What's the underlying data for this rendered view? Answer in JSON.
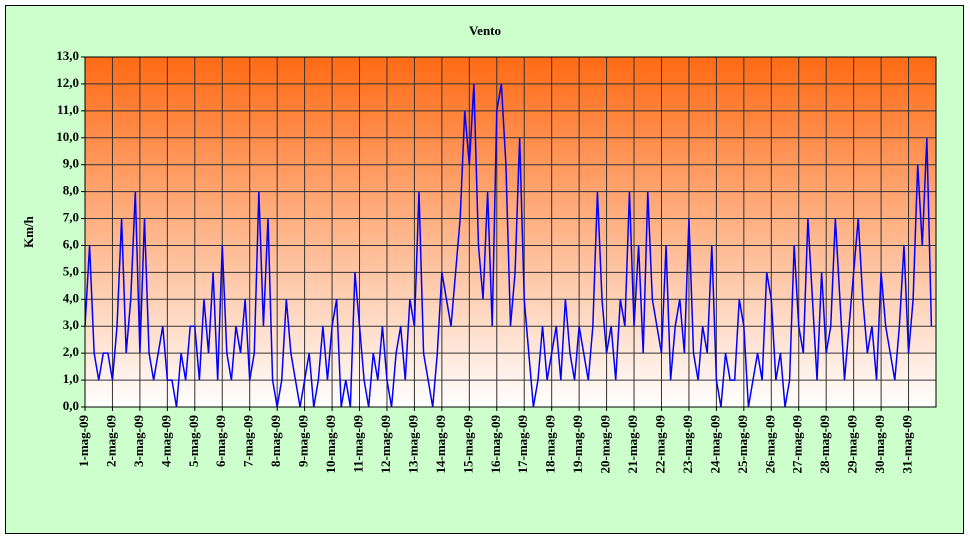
{
  "chart_data": {
    "type": "line",
    "title": "Vento",
    "ylabel": "Km/h",
    "x": [
      0,
      4,
      8,
      12,
      16,
      20,
      24,
      28,
      32,
      36,
      40,
      44,
      48,
      52,
      56,
      60,
      64,
      68,
      72,
      76,
      80,
      84,
      88,
      92,
      96,
      100,
      104,
      108,
      112,
      116,
      120,
      124,
      128,
      132,
      136,
      140,
      144,
      148,
      152,
      156,
      160,
      164,
      168,
      172,
      176,
      180,
      184,
      188,
      192,
      196,
      200,
      204,
      208,
      212,
      216,
      220,
      224,
      228,
      232,
      236,
      240,
      244,
      248,
      252,
      256,
      260,
      264,
      268,
      272,
      276,
      280,
      284,
      288,
      292,
      296,
      300,
      304,
      308,
      312,
      316,
      320,
      324,
      328,
      332,
      336,
      340,
      344,
      348,
      352,
      356,
      360,
      364,
      368,
      372,
      376,
      380,
      384,
      388,
      392,
      396,
      400,
      404,
      408,
      412,
      416,
      420,
      424,
      428,
      432,
      436,
      440,
      444,
      448,
      452,
      456,
      460,
      464,
      468,
      472,
      476,
      480,
      484,
      488,
      492,
      496,
      500,
      504,
      508,
      512,
      516,
      520,
      524,
      528,
      532,
      536,
      540,
      544,
      548,
      552,
      556,
      560,
      564,
      568,
      572,
      576,
      580,
      584,
      588,
      592,
      596,
      600,
      604,
      608,
      612,
      616,
      620,
      624,
      628,
      632,
      636,
      640,
      644,
      648,
      652,
      656,
      660,
      664,
      668,
      672,
      676,
      680,
      684,
      688,
      692,
      696,
      700,
      704,
      708,
      712,
      716,
      720,
      724,
      728,
      732,
      736,
      740
    ],
    "values": [
      3,
      6,
      2,
      1,
      2,
      2,
      1,
      3,
      7,
      2,
      4,
      8,
      2,
      7,
      2,
      1,
      2,
      3,
      1,
      1,
      0,
      2,
      1,
      3,
      3,
      1,
      4,
      2,
      5,
      1,
      6,
      2,
      1,
      3,
      2,
      4,
      1,
      2,
      8,
      3,
      7,
      1,
      0,
      1,
      4,
      2,
      1,
      0,
      1,
      2,
      0,
      1,
      3,
      1,
      3,
      4,
      0,
      1,
      0,
      5,
      3,
      1,
      0,
      2,
      1,
      3,
      1,
      0,
      2,
      3,
      1,
      4,
      3,
      8,
      2,
      1,
      0,
      2,
      5,
      4,
      3,
      5,
      7,
      11,
      9,
      12,
      6,
      4,
      8,
      3,
      11,
      12,
      9,
      3,
      5,
      10,
      4,
      2,
      0,
      1,
      3,
      1,
      2,
      3,
      1,
      4,
      2,
      1,
      3,
      2,
      1,
      3,
      8,
      4,
      2,
      3,
      1,
      4,
      3,
      8,
      3,
      6,
      2,
      8,
      4,
      3,
      2,
      6,
      1,
      3,
      4,
      2,
      7,
      2,
      1,
      3,
      2,
      6,
      1,
      0,
      2,
      1,
      1,
      4,
      3,
      0,
      1,
      2,
      1,
      5,
      4,
      1,
      2,
      0,
      1,
      6,
      3,
      2,
      7,
      4,
      1,
      5,
      2,
      3,
      7,
      4,
      1,
      3,
      5,
      7,
      4,
      2,
      3,
      1,
      5,
      3,
      2,
      1,
      3,
      6,
      2,
      4,
      9,
      6,
      10,
      3
    ],
    "color": "#0000ff",
    "xlim": [
      0,
      744
    ],
    "xticks": [
      {
        "value": 0,
        "label": "1-mag-09"
      },
      {
        "value": 24,
        "label": "2-mag-09"
      },
      {
        "value": 48,
        "label": "3-mag-09"
      },
      {
        "value": 72,
        "label": "4-mag-09"
      },
      {
        "value": 96,
        "label": "5-mag-09"
      },
      {
        "value": 120,
        "label": "6-mag-09"
      },
      {
        "value": 144,
        "label": "7-mag-09"
      },
      {
        "value": 168,
        "label": "8-mag-09"
      },
      {
        "value": 192,
        "label": "9-mag-09"
      },
      {
        "value": 216,
        "label": "10-mag-09"
      },
      {
        "value": 240,
        "label": "11-mag-09"
      },
      {
        "value": 264,
        "label": "12-mag-09"
      },
      {
        "value": 288,
        "label": "13-mag-09"
      },
      {
        "value": 312,
        "label": "14-mag-09"
      },
      {
        "value": 336,
        "label": "15-mag-09"
      },
      {
        "value": 360,
        "label": "16-mag-09"
      },
      {
        "value": 384,
        "label": "17-mag-09"
      },
      {
        "value": 408,
        "label": "18-mag-09"
      },
      {
        "value": 432,
        "label": "19-mag-09"
      },
      {
        "value": 456,
        "label": "20-mag-09"
      },
      {
        "value": 480,
        "label": "21-mag-09"
      },
      {
        "value": 504,
        "label": "22-mag-09"
      },
      {
        "value": 528,
        "label": "23-mag-09"
      },
      {
        "value": 552,
        "label": "24-mag-09"
      },
      {
        "value": 576,
        "label": "25-mag-09"
      },
      {
        "value": 600,
        "label": "26-mag-09"
      },
      {
        "value": 624,
        "label": "27-mag-09"
      },
      {
        "value": 648,
        "label": "28-mag-09"
      },
      {
        "value": 672,
        "label": "29-mag-09"
      },
      {
        "value": 696,
        "label": "30-mag-09"
      },
      {
        "value": 720,
        "label": "31-mag-09"
      }
    ],
    "ylim": [
      0,
      13
    ],
    "yticks": [
      {
        "value": 0,
        "label": "0,0"
      },
      {
        "value": 1,
        "label": "1,0"
      },
      {
        "value": 2,
        "label": "2,0"
      },
      {
        "value": 3,
        "label": "3,0"
      },
      {
        "value": 4,
        "label": "4,0"
      },
      {
        "value": 5,
        "label": "5,0"
      },
      {
        "value": 6,
        "label": "6,0"
      },
      {
        "value": 7,
        "label": "7,0"
      },
      {
        "value": 8,
        "label": "8,0"
      },
      {
        "value": 9,
        "label": "9,0"
      },
      {
        "value": 10,
        "label": "10,0"
      },
      {
        "value": 11,
        "label": "11,0"
      },
      {
        "value": 12,
        "label": "12,0"
      },
      {
        "value": 13,
        "label": "13,0"
      }
    ],
    "grid": true
  }
}
